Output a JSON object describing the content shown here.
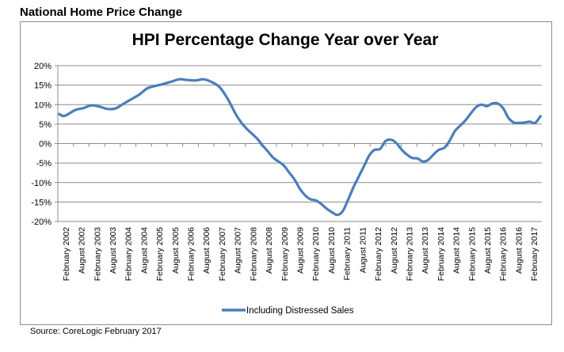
{
  "header": {
    "title": "National Home Price Change"
  },
  "source": "Source: CoreLogic February 2017",
  "chart_data": {
    "type": "line",
    "title": "HPI Percentage Change Year over Year",
    "xlabel": "",
    "ylabel": "",
    "ylim": [
      -20,
      20
    ],
    "yticks": [
      20,
      15,
      10,
      5,
      0,
      -5,
      -10,
      -15,
      -20
    ],
    "ytick_labels": [
      "20%",
      "15%",
      "10%",
      "5%",
      "0%",
      "-5%",
      "-10%",
      "-15%",
      "-20%"
    ],
    "x_month_count": 181,
    "x_tick_labels": [
      "February 2002",
      "August 2002",
      "February 2003",
      "August 2003",
      "February 2004",
      "August 2004",
      "February 2005",
      "August 2005",
      "February 2006",
      "August 2006",
      "February 2007",
      "August 2007",
      "February 2008",
      "August 2008",
      "February 2009",
      "August 2009",
      "February 2010",
      "August 2010",
      "February 2011",
      "August 2011",
      "February 2012",
      "August 2012",
      "February 2013",
      "August 2013",
      "February 2014",
      "August 2014",
      "February 2015",
      "August 2015",
      "February 2016",
      "August 2016",
      "February 2017"
    ],
    "grid": true,
    "legend": "bottom-center",
    "series_color": "#4a7ebb",
    "series": [
      {
        "name": "Including Distressed Sales",
        "x_months": [
          0,
          2,
          6,
          9,
          12,
          15,
          18,
          21,
          24,
          27,
          30,
          33,
          36,
          39,
          42,
          45,
          48,
          51,
          54,
          57,
          60,
          63,
          66,
          68,
          70,
          72,
          74,
          76,
          78,
          80,
          82,
          84,
          86,
          88,
          90,
          92,
          94,
          96,
          98,
          100,
          102,
          104,
          106,
          108,
          110,
          112,
          114,
          116,
          118,
          120,
          122,
          124,
          126,
          128,
          130,
          132,
          134,
          136,
          138,
          140,
          142,
          144,
          146,
          148,
          150,
          152,
          154,
          156,
          158,
          160,
          162,
          164,
          166,
          168,
          170,
          172,
          174,
          176,
          178,
          180
        ],
        "values": [
          7.6,
          7.1,
          8.6,
          9.1,
          9.8,
          9.5,
          8.9,
          9.0,
          10.2,
          11.4,
          12.6,
          14.2,
          14.8,
          15.3,
          15.9,
          16.5,
          16.3,
          16.2,
          16.5,
          15.8,
          14.5,
          11.5,
          7.6,
          5.5,
          3.9,
          2.6,
          1.3,
          -0.4,
          -2.0,
          -3.6,
          -4.6,
          -5.6,
          -7.4,
          -9.2,
          -11.6,
          -13.3,
          -14.3,
          -14.6,
          -15.5,
          -16.7,
          -17.6,
          -18.3,
          -17.4,
          -14.5,
          -11.3,
          -8.5,
          -5.8,
          -3.0,
          -1.6,
          -1.4,
          0.6,
          1.0,
          0.2,
          -1.5,
          -2.8,
          -3.7,
          -3.8,
          -4.6,
          -4.2,
          -2.8,
          -1.6,
          -1.1,
          0.7,
          3.2,
          4.6,
          6.0,
          7.8,
          9.4,
          10.0,
          9.6,
          10.3,
          10.3,
          9.1,
          6.6,
          5.4,
          5.3,
          5.4,
          5.6,
          5.3,
          7.0
        ]
      }
    ]
  }
}
